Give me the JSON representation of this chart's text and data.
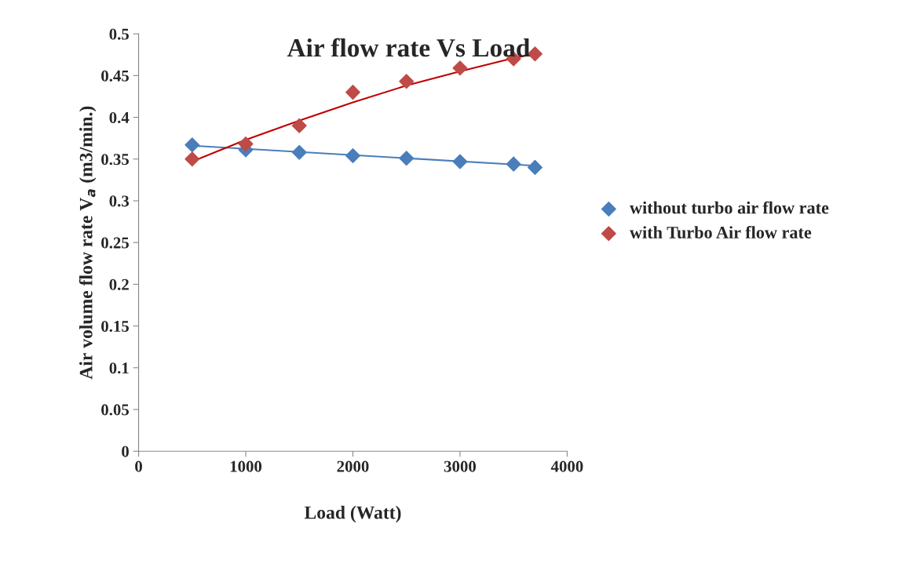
{
  "chart_data": {
    "type": "scatter",
    "title": "Air flow rate Vs Load",
    "xlabel": "Load (Watt)",
    "ylabel": "Air volume flow rate V$_{a}$ (m3/min.)",
    "xlim": [
      0,
      4000
    ],
    "xticks": [
      0,
      1000,
      2000,
      3000,
      4000
    ],
    "ylim": [
      0,
      0.5
    ],
    "yticks": [
      0,
      0.05,
      0.1,
      0.15,
      0.2,
      0.25,
      0.3,
      0.35,
      0.4,
      0.45,
      0.5
    ],
    "grid": false,
    "legend": "right",
    "series": [
      {
        "name": "without turbo air flow rate",
        "marker": "diamond",
        "color": "#4a7ebb",
        "x": [
          500,
          1000,
          1500,
          2000,
          2500,
          3000,
          3500,
          3700
        ],
        "values": [
          0.367,
          0.361,
          0.358,
          0.354,
          0.351,
          0.347,
          0.344,
          0.34
        ]
      },
      {
        "name": "with Turbo Air flow rate",
        "marker": "diamond",
        "color": "#be4b48",
        "x": [
          500,
          1000,
          1500,
          2000,
          2500,
          3000,
          3500,
          3700
        ],
        "values": [
          0.35,
          0.368,
          0.39,
          0.43,
          0.443,
          0.459,
          0.47,
          0.476
        ]
      },
      {
        "type": "line",
        "color": "#4a7ebb",
        "x": [
          500,
          3700
        ],
        "values": [
          0.366,
          0.342
        ]
      },
      {
        "type": "line",
        "color": "#c00000",
        "x": [
          500,
          1000,
          1500,
          2000,
          2500,
          3000,
          3500,
          3700
        ],
        "values": [
          0.347,
          0.373,
          0.396,
          0.418,
          0.438,
          0.455,
          0.471,
          0.476
        ]
      }
    ]
  }
}
